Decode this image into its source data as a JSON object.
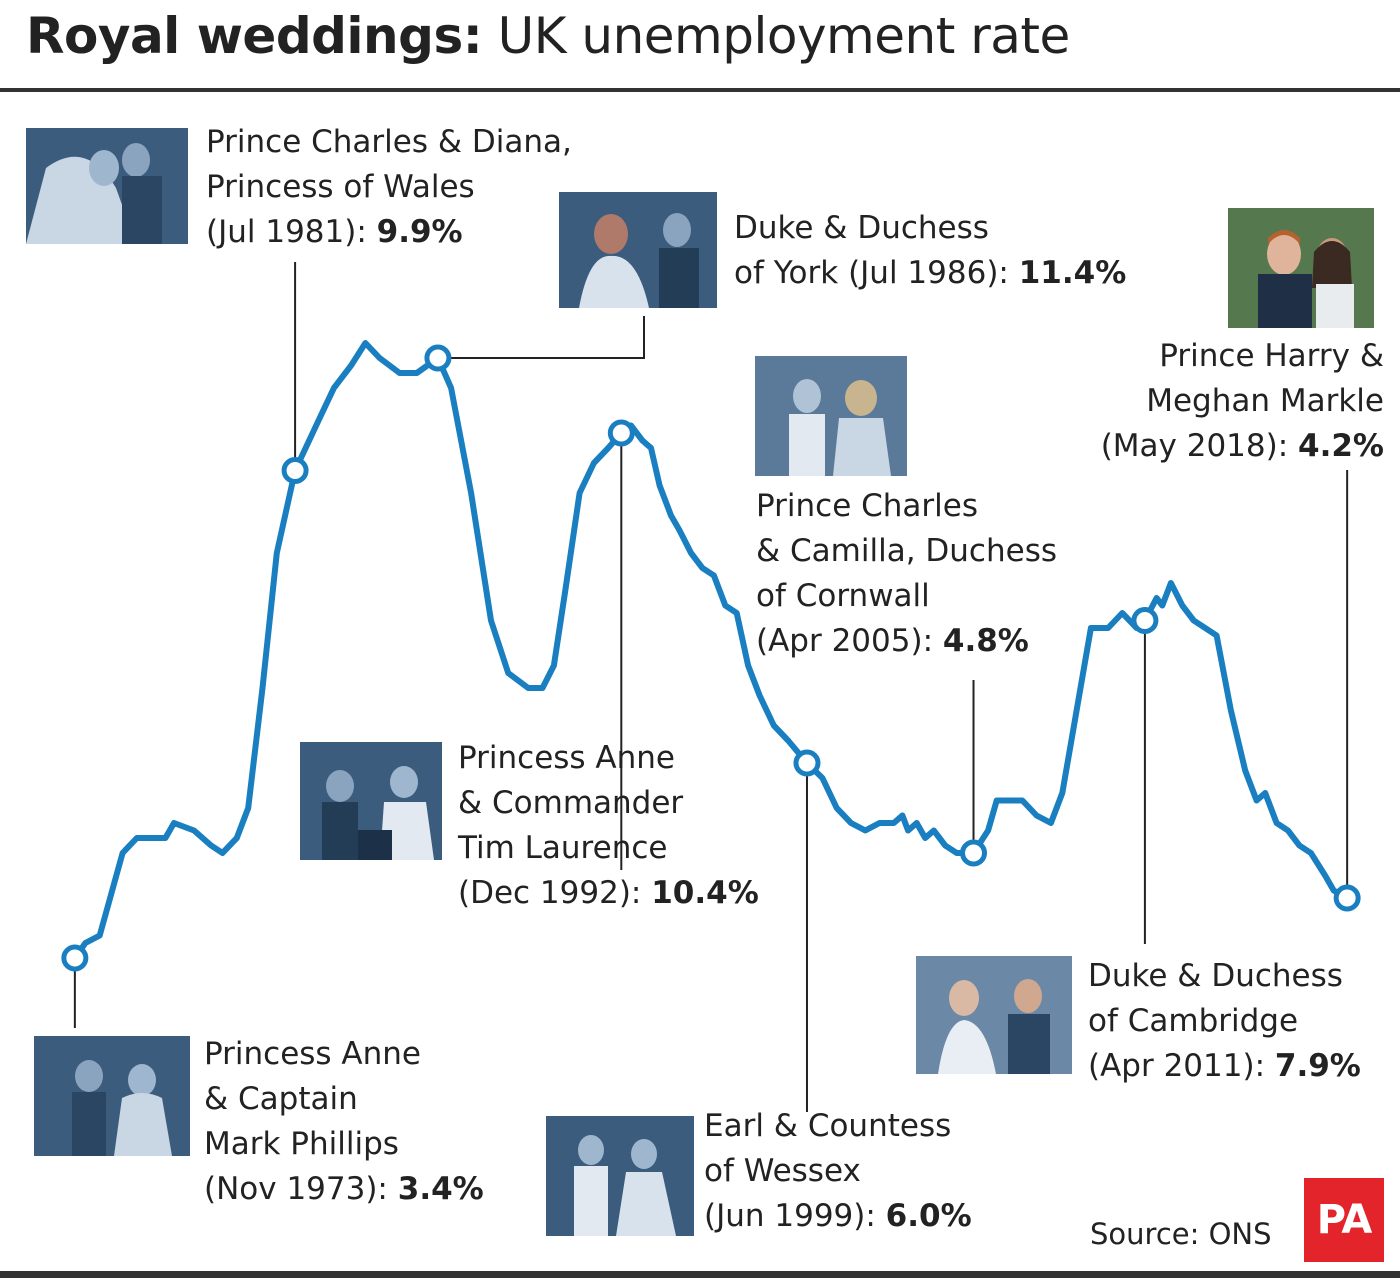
{
  "header": {
    "title_bold": "Royal weddings:",
    "title_rest": " UK unemployment rate"
  },
  "source": "Source: ONS",
  "logo_text": "PA",
  "colors": {
    "line": "#1a7fc1",
    "photo_tint": "#3c5c7e",
    "logo": "#e3242b",
    "text": "#222222"
  },
  "chart_data": {
    "type": "line",
    "title": "Royal weddings: UK unemployment rate",
    "xlabel": "",
    "ylabel": "",
    "xlim": [
      1973.8,
      2018.4
    ],
    "ylim": [
      3.4,
      11.4
    ],
    "grid": false,
    "series": [
      {
        "values": [
          [
            1973.83,
            3.4
          ],
          [
            1974.2,
            3.6
          ],
          [
            1974.7,
            3.7
          ],
          [
            1975.5,
            4.8
          ],
          [
            1976.0,
            5.0
          ],
          [
            1977.0,
            5.0
          ],
          [
            1977.3,
            5.2
          ],
          [
            1978.0,
            5.1
          ],
          [
            1978.6,
            4.9
          ],
          [
            1979.0,
            4.8
          ],
          [
            1979.5,
            5.0
          ],
          [
            1979.9,
            5.4
          ],
          [
            1980.4,
            7.0
          ],
          [
            1980.9,
            8.8
          ],
          [
            1981.54,
            9.9
          ],
          [
            1982.4,
            10.6
          ],
          [
            1982.9,
            11.0
          ],
          [
            1983.5,
            11.3
          ],
          [
            1984.0,
            11.6
          ],
          [
            1984.5,
            11.4
          ],
          [
            1985.2,
            11.2
          ],
          [
            1985.8,
            11.2
          ],
          [
            1986.54,
            11.4
          ],
          [
            1987.0,
            11.0
          ],
          [
            1987.7,
            9.6
          ],
          [
            1988.4,
            7.9
          ],
          [
            1989.0,
            7.2
          ],
          [
            1989.7,
            7.0
          ],
          [
            1990.2,
            7.0
          ],
          [
            1990.6,
            7.3
          ],
          [
            1991.0,
            8.3
          ],
          [
            1991.5,
            9.6
          ],
          [
            1992.0,
            10.0
          ],
          [
            1992.5,
            10.2
          ],
          [
            1992.96,
            10.4
          ],
          [
            1993.3,
            10.5
          ],
          [
            1993.7,
            10.3
          ],
          [
            1994.0,
            10.2
          ],
          [
            1994.3,
            9.7
          ],
          [
            1994.7,
            9.3
          ],
          [
            1995.0,
            9.1
          ],
          [
            1995.4,
            8.8
          ],
          [
            1995.8,
            8.6
          ],
          [
            1996.2,
            8.5
          ],
          [
            1996.6,
            8.1
          ],
          [
            1997.0,
            8.0
          ],
          [
            1997.4,
            7.3
          ],
          [
            1997.8,
            6.9
          ],
          [
            1998.3,
            6.5
          ],
          [
            1998.8,
            6.3
          ],
          [
            1999.46,
            6.0
          ],
          [
            2000.0,
            5.8
          ],
          [
            2000.5,
            5.4
          ],
          [
            2001.0,
            5.2
          ],
          [
            2001.5,
            5.1
          ],
          [
            2002.0,
            5.2
          ],
          [
            2002.5,
            5.2
          ],
          [
            2002.8,
            5.3
          ],
          [
            2003.0,
            5.1
          ],
          [
            2003.3,
            5.2
          ],
          [
            2003.6,
            5.0
          ],
          [
            2003.9,
            5.1
          ],
          [
            2004.3,
            4.9
          ],
          [
            2004.7,
            4.8
          ],
          [
            2005.29,
            4.8
          ],
          [
            2005.8,
            5.1
          ],
          [
            2006.1,
            5.5
          ],
          [
            2006.6,
            5.5
          ],
          [
            2007.0,
            5.5
          ],
          [
            2007.5,
            5.3
          ],
          [
            2008.0,
            5.2
          ],
          [
            2008.4,
            5.6
          ],
          [
            2008.9,
            6.7
          ],
          [
            2009.4,
            7.8
          ],
          [
            2010.0,
            7.8
          ],
          [
            2010.5,
            8.0
          ],
          [
            2011.0,
            7.8
          ],
          [
            2011.29,
            7.9
          ],
          [
            2011.7,
            8.2
          ],
          [
            2011.9,
            8.1
          ],
          [
            2012.2,
            8.4
          ],
          [
            2012.6,
            8.1
          ],
          [
            2013.0,
            7.9
          ],
          [
            2013.4,
            7.8
          ],
          [
            2013.8,
            7.7
          ],
          [
            2014.3,
            6.7
          ],
          [
            2014.8,
            5.9
          ],
          [
            2015.2,
            5.5
          ],
          [
            2015.5,
            5.6
          ],
          [
            2015.9,
            5.2
          ],
          [
            2016.3,
            5.1
          ],
          [
            2016.7,
            4.9
          ],
          [
            2017.1,
            4.8
          ],
          [
            2017.6,
            4.5
          ],
          [
            2017.9,
            4.3
          ],
          [
            2018.37,
            4.2
          ]
        ]
      }
    ],
    "annotations": [
      {
        "x": 1973.83,
        "y": 3.4,
        "text_lines": [
          "Princess Anne",
          "& Captain",
          "Mark Phillips"
        ],
        "date": "(Nov 1973): ",
        "value_label": "3.4%"
      },
      {
        "x": 1981.54,
        "y": 9.9,
        "text_lines": [
          "Prince Charles & Diana,",
          "Princess of Wales"
        ],
        "date": "(Jul 1981): ",
        "value_label": "9.9%"
      },
      {
        "x": 1986.54,
        "y": 11.4,
        "text_lines": [
          "Duke & Duchess"
        ],
        "date": "of York (Jul 1986): ",
        "value_label": "11.4%"
      },
      {
        "x": 1992.96,
        "y": 10.4,
        "text_lines": [
          "Princess Anne",
          "& Commander",
          "Tim Laurence"
        ],
        "date": "(Dec 1992): ",
        "value_label": "10.4%"
      },
      {
        "x": 1999.46,
        "y": 6.0,
        "text_lines": [
          "Earl & Countess"
        ],
        "date": "of Wessex",
        "date2": "(Jun 1999): ",
        "value_label": "6.0%"
      },
      {
        "x": 2005.29,
        "y": 4.8,
        "text_lines": [
          "Prince Charles",
          "& Camilla, Duchess",
          "of Cornwall"
        ],
        "date": "(Apr 2005): ",
        "value_label": "4.8%"
      },
      {
        "x": 2011.29,
        "y": 7.9,
        "text_lines": [
          "Duke & Duchess",
          "of Cambridge"
        ],
        "date": "(Apr 2011): ",
        "value_label": "7.9%"
      },
      {
        "x": 2018.37,
        "y": 4.2,
        "text_lines": [
          "Prince Harry &",
          "Meghan Markle"
        ],
        "date": "(May 2018): ",
        "value_label": "4.2%"
      }
    ]
  }
}
